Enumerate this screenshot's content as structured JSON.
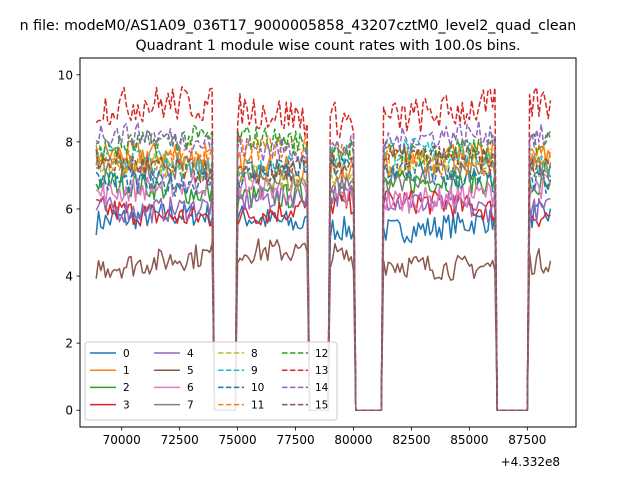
{
  "chart_data": {
    "type": "line",
    "suptitle": "n file: modeM0/AS1A09_036T17_9000005858_43207cztM0_level2_quad_clean",
    "title": "Quadrant 1 module wise count rates with 100.0s bins.",
    "xlabel": "",
    "ylabel": "",
    "x_offset_label": "+4.332e8",
    "xlim": [
      68200,
      89600
    ],
    "ylim": [
      -0.5,
      10.5
    ],
    "xticks": [
      70000,
      72500,
      75000,
      77500,
      80000,
      82500,
      85000,
      87500
    ],
    "xtick_labels": [
      "70000",
      "72500",
      "75000",
      "77500",
      "80000",
      "82500",
      "85000",
      "87500"
    ],
    "yticks": [
      0,
      2,
      4,
      6,
      8,
      10
    ],
    "ytick_labels": [
      "0",
      "2",
      "4",
      "6",
      "8",
      "10"
    ],
    "legend_position": "lower-left",
    "observation_segments": [
      [
        68900,
        73900
      ],
      [
        75000,
        78000
      ],
      [
        79000,
        80000
      ],
      [
        81300,
        86100
      ],
      [
        87600,
        88500
      ]
    ],
    "gap_level": 0,
    "series": [
      {
        "name": "0",
        "color": "#1f77b4",
        "dash": "solid",
        "mean": 5.6
      },
      {
        "name": "1",
        "color": "#ff7f0e",
        "dash": "solid",
        "mean": 7.4
      },
      {
        "name": "2",
        "color": "#2ca02c",
        "dash": "solid",
        "mean": 6.6
      },
      {
        "name": "3",
        "color": "#d62728",
        "dash": "solid",
        "mean": 6.0
      },
      {
        "name": "4",
        "color": "#9467bd",
        "dash": "solid",
        "mean": 6.2
      },
      {
        "name": "5",
        "color": "#8c564b",
        "dash": "solid",
        "mean": 4.5
      },
      {
        "name": "6",
        "color": "#e377c2",
        "dash": "solid",
        "mean": 6.5
      },
      {
        "name": "7",
        "color": "#7f7f7f",
        "dash": "solid",
        "mean": 7.0
      },
      {
        "name": "8",
        "color": "#bcbd22",
        "dash": "dashed",
        "mean": 7.2
      },
      {
        "name": "9",
        "color": "#17becf",
        "dash": "dashed",
        "mean": 7.5
      },
      {
        "name": "10",
        "color": "#1f77b4",
        "dash": "dashed",
        "mean": 7.0
      },
      {
        "name": "11",
        "color": "#ff7f0e",
        "dash": "dashed",
        "mean": 7.6
      },
      {
        "name": "12",
        "color": "#2ca02c",
        "dash": "dashed",
        "mean": 7.9
      },
      {
        "name": "13",
        "color": "#d62728",
        "dash": "dashed",
        "mean": 8.9
      },
      {
        "name": "14",
        "color": "#9467bd",
        "dash": "dashed",
        "mean": 8.0
      },
      {
        "name": "15",
        "color": "#8c564b",
        "dash": "dashed",
        "mean": 7.3
      }
    ]
  }
}
